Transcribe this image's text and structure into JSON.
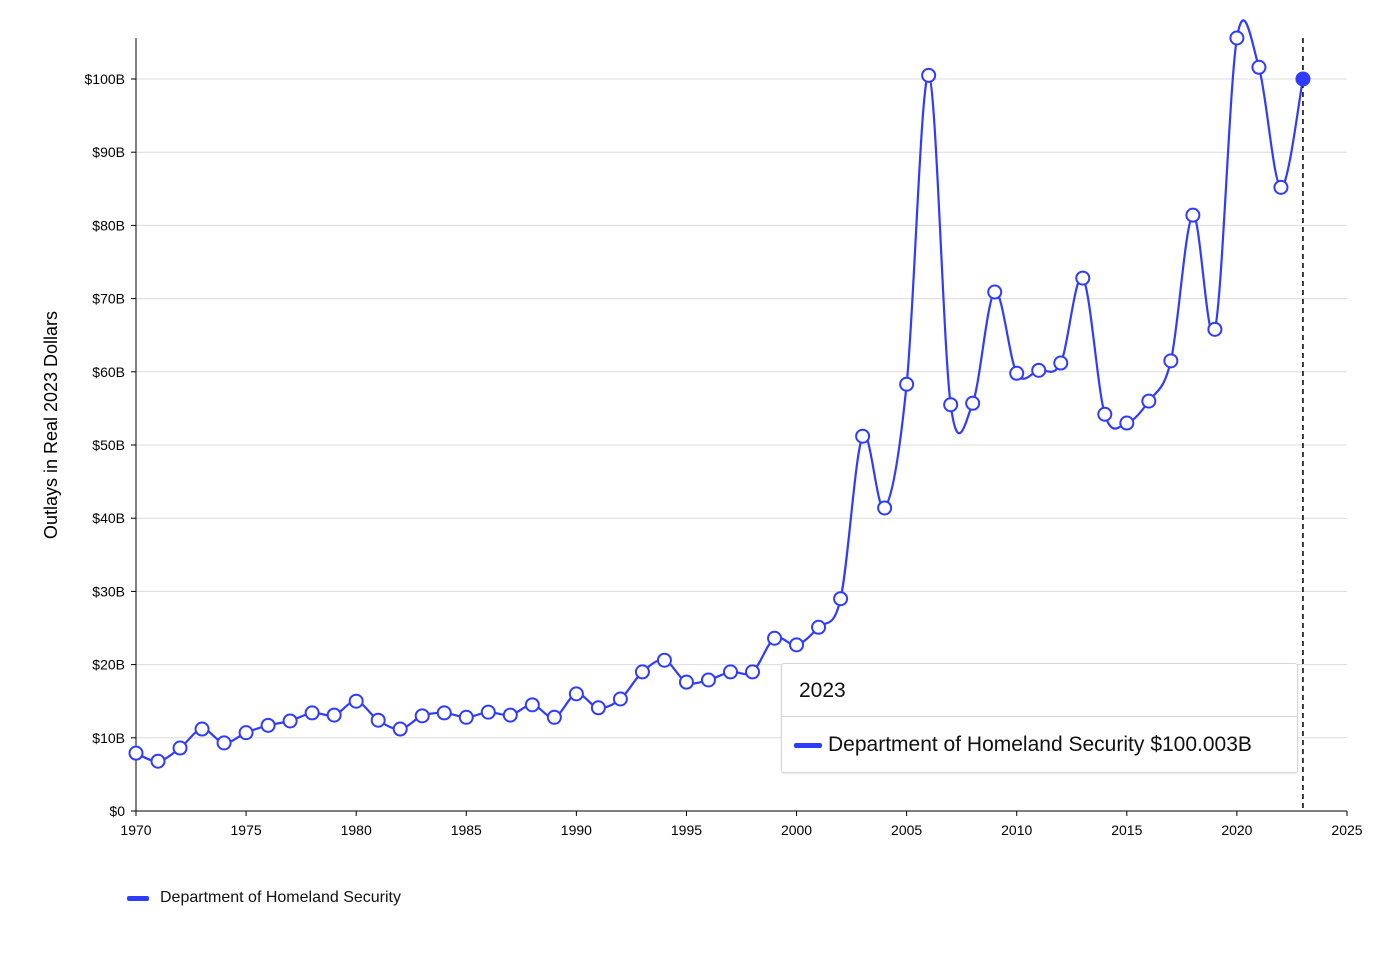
{
  "chart_data": {
    "type": "line",
    "title": "",
    "xlabel": "",
    "ylabel": "Outlays in Real 2023 Dollars",
    "xlim": [
      1970,
      2025
    ],
    "ylim": [
      0,
      105
    ],
    "grid": true,
    "x_ticks": [
      "1970",
      "1975",
      "1980",
      "1985",
      "1990",
      "1995",
      "2000",
      "2005",
      "2010",
      "2015",
      "2020",
      "2025"
    ],
    "y_ticks": [
      "$0",
      "$10B",
      "$20B",
      "$30B",
      "$40B",
      "$50B",
      "$60B",
      "$70B",
      "$80B",
      "$90B",
      "$100B"
    ],
    "legend_position": "bottom-left",
    "series": [
      {
        "name": "Department of Homeland Security",
        "color": "#2f3cff",
        "x": [
          1970,
          1971,
          1972,
          1973,
          1974,
          1975,
          1976,
          1977,
          1978,
          1979,
          1980,
          1981,
          1982,
          1983,
          1984,
          1985,
          1986,
          1987,
          1988,
          1989,
          1990,
          1991,
          1992,
          1993,
          1994,
          1995,
          1996,
          1997,
          1998,
          1999,
          2000,
          2001,
          2002,
          2003,
          2004,
          2005,
          2006,
          2007,
          2008,
          2009,
          2010,
          2011,
          2012,
          2013,
          2014,
          2015,
          2016,
          2017,
          2018,
          2019,
          2020,
          2021,
          2022,
          2023
        ],
        "y": [
          7.9,
          6.8,
          8.6,
          11.2,
          9.3,
          10.7,
          11.7,
          12.3,
          13.4,
          13.1,
          15.0,
          12.4,
          11.2,
          13.0,
          13.4,
          12.8,
          13.5,
          13.1,
          14.5,
          12.8,
          16.0,
          14.1,
          15.3,
          19.0,
          20.6,
          17.6,
          17.9,
          19.0,
          19.0,
          23.6,
          22.7,
          25.1,
          29.0,
          51.2,
          41.4,
          58.3,
          100.5,
          55.5,
          55.7,
          70.9,
          59.8,
          60.2,
          61.2,
          72.8,
          54.2,
          53.0,
          56.0,
          61.5,
          81.4,
          65.8,
          105.6,
          101.6,
          85.2,
          100.003
        ]
      }
    ],
    "highlight": {
      "x": 2023,
      "y": 100.003
    }
  },
  "tooltip": {
    "year": "2023",
    "series_name": "Department of Homeland Security",
    "value": "$100.003B"
  },
  "legend": {
    "label": "Department of Homeland Security"
  }
}
